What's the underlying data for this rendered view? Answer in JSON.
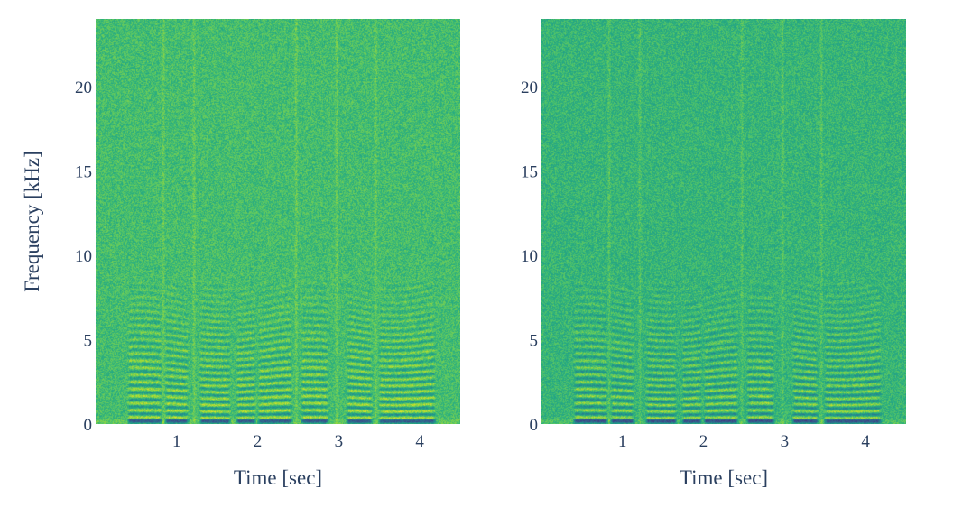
{
  "chart_data": [
    {
      "type": "heatmap",
      "title": "",
      "xlabel": "Time [sec]",
      "ylabel": "Frequency [kHz]",
      "xlim": [
        0.0,
        4.5
      ],
      "ylim": [
        0,
        24
      ],
      "xticks": [
        1,
        2,
        3,
        4
      ],
      "yticks": [
        0,
        5,
        10,
        15,
        20
      ],
      "colorscale": "viridis",
      "color_range_visible": [
        "#3b9b8c",
        "#d2e21b"
      ],
      "voiced_segments_sec": [
        [
          0.38,
          0.82
        ],
        [
          0.84,
          1.15
        ],
        [
          1.27,
          1.67
        ],
        [
          1.72,
          1.98
        ],
        [
          1.99,
          2.43
        ],
        [
          2.52,
          2.88
        ],
        [
          3.08,
          3.42
        ],
        [
          3.48,
          4.2
        ]
      ],
      "pauses_sec": [
        0.83,
        1.21,
        2.47,
        2.97,
        3.45
      ],
      "harmonic_band_top_khz": 8.5,
      "harmonic_spacing_khz": 0.4
    },
    {
      "type": "heatmap",
      "title": "",
      "xlabel": "Time [sec]",
      "ylabel": "",
      "xlim": [
        0.0,
        4.5
      ],
      "ylim": [
        0,
        24
      ],
      "xticks": [
        1,
        2,
        3,
        4
      ],
      "yticks": [
        0,
        5,
        10,
        15,
        20
      ],
      "colorscale": "viridis",
      "color_range_visible": [
        "#3b9b8c",
        "#d2e21b"
      ],
      "voiced_segments_sec": [
        [
          0.38,
          0.82
        ],
        [
          0.84,
          1.15
        ],
        [
          1.27,
          1.67
        ],
        [
          1.72,
          1.98
        ],
        [
          1.99,
          2.43
        ],
        [
          2.52,
          2.88
        ],
        [
          3.08,
          3.42
        ],
        [
          3.48,
          4.2
        ]
      ],
      "pauses_sec": [
        0.83,
        1.21,
        2.47,
        2.97,
        3.45
      ],
      "harmonic_band_top_khz": 8.5,
      "harmonic_spacing_khz": 0.4
    }
  ]
}
